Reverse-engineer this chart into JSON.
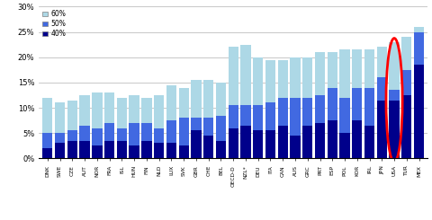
{
  "categories": [
    "DNK",
    "SWE",
    "CZE",
    "AUT",
    "NOR",
    "FRA",
    "ISL",
    "HUN",
    "FIN",
    "NLD",
    "LUX",
    "SVK",
    "GBR",
    "CHE",
    "BEL",
    "OECD-D",
    "NZL*",
    "DEU",
    "ITA",
    "CAN",
    "AUS",
    "GRC",
    "PRT",
    "ESP",
    "POL",
    "KOR",
    "IRL",
    "JPN",
    "USA",
    "TUR",
    "MEX"
  ],
  "val_40": [
    2.0,
    3.0,
    3.5,
    3.5,
    2.5,
    3.5,
    3.5,
    2.5,
    3.5,
    3.0,
    3.0,
    2.5,
    5.5,
    4.5,
    3.5,
    6.0,
    6.5,
    5.5,
    5.5,
    6.5,
    4.5,
    6.5,
    7.0,
    7.5,
    5.0,
    7.5,
    6.5,
    11.5,
    11.5,
    12.5,
    18.5
  ],
  "val_50": [
    3.0,
    2.0,
    2.0,
    3.0,
    3.5,
    3.5,
    2.5,
    4.5,
    3.5,
    3.0,
    4.5,
    5.5,
    2.5,
    3.5,
    5.0,
    4.5,
    4.0,
    5.0,
    5.5,
    5.5,
    7.5,
    5.5,
    5.5,
    6.5,
    7.0,
    6.5,
    7.5,
    4.5,
    2.0,
    5.0,
    6.5
  ],
  "val_60": [
    7.0,
    6.0,
    6.0,
    6.0,
    7.0,
    6.0,
    6.0,
    5.5,
    5.0,
    6.5,
    7.0,
    6.0,
    7.5,
    7.5,
    6.5,
    11.5,
    12.0,
    9.5,
    8.5,
    7.5,
    8.0,
    8.0,
    8.5,
    7.0,
    9.5,
    7.5,
    7.5,
    6.0,
    9.5,
    6.5,
    1.0
  ],
  "color_40": "#00008B",
  "color_50": "#4169E1",
  "color_60": "#ADD8E6",
  "highlighted_index": 28,
  "ylim": [
    0,
    30
  ]
}
